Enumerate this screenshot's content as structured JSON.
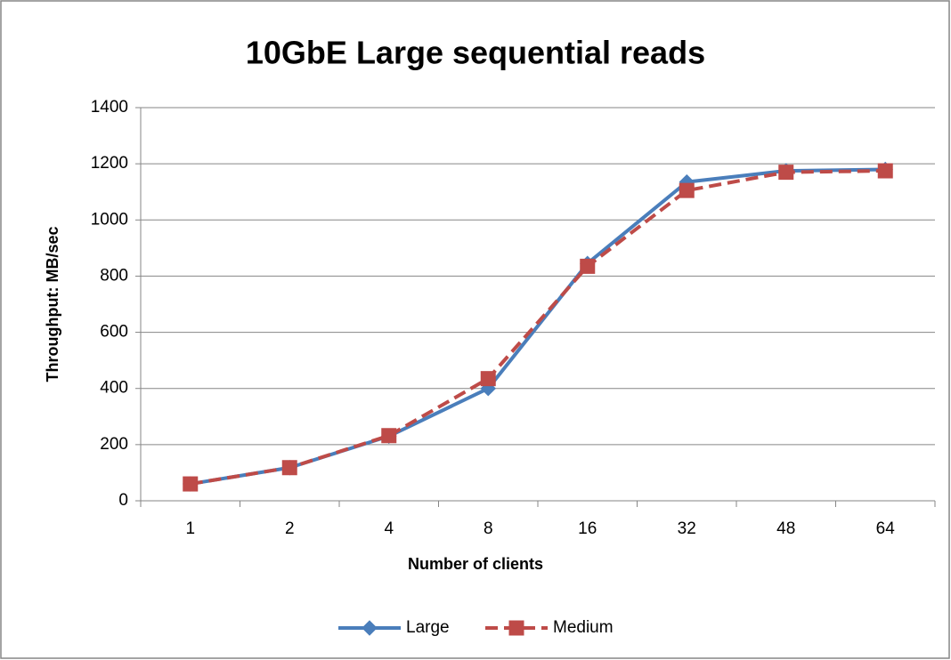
{
  "chart_data": {
    "type": "line",
    "title": "10GbE Large sequential reads",
    "x_label": "Number of clients",
    "y_label": "Throughput: MB/sec",
    "categories": [
      "1",
      "2",
      "4",
      "8",
      "16",
      "32",
      "48",
      "64"
    ],
    "series": [
      {
        "name": "Large",
        "color": "#4a7ebb",
        "marker": "diamond",
        "dashed": false,
        "values": [
          60,
          118,
          230,
          400,
          845,
          1135,
          1175,
          1180
        ]
      },
      {
        "name": "Medium",
        "color": "#be4b48",
        "marker": "square",
        "dashed": true,
        "values": [
          60,
          118,
          232,
          435,
          835,
          1105,
          1170,
          1175
        ]
      }
    ],
    "ylim": [
      0,
      1400
    ],
    "yticks": [
      0,
      200,
      400,
      600,
      800,
      1000,
      1200,
      1400
    ],
    "grid": true,
    "legend": "bottom"
  }
}
